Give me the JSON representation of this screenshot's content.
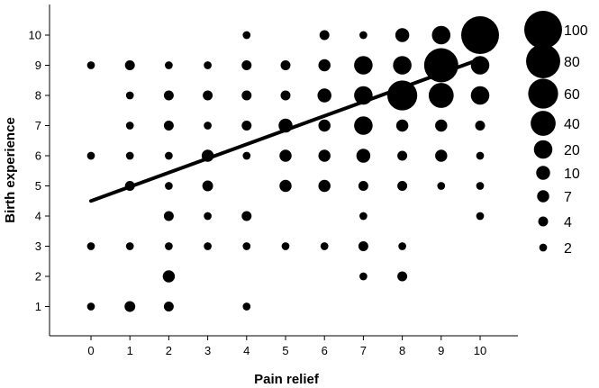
{
  "chart_data": {
    "type": "scatter",
    "title": "",
    "xlabel": "Pain relief",
    "ylabel": "Birth experience",
    "x_ticks": [
      "0",
      "1",
      "2",
      "3",
      "4",
      "5",
      "6",
      "7",
      "8",
      "9",
      "10"
    ],
    "y_ticks": [
      "1",
      "2",
      "3",
      "4",
      "5",
      "6",
      "7",
      "8",
      "9",
      "10"
    ],
    "xlim": [
      -1,
      11
    ],
    "ylim": [
      0,
      11
    ],
    "grid": false,
    "legend_position": "right",
    "size_legend": [
      {
        "label": "100",
        "value": 100
      },
      {
        "label": "80",
        "value": 80
      },
      {
        "label": "60",
        "value": 60
      },
      {
        "label": "40",
        "value": 40
      },
      {
        "label": "20",
        "value": 20
      },
      {
        "label": "10",
        "value": 10
      },
      {
        "label": "7",
        "value": 7
      },
      {
        "label": "4",
        "value": 4
      },
      {
        "label": "2",
        "value": 2
      }
    ],
    "points": [
      {
        "x": 0,
        "y": 1,
        "n": 2
      },
      {
        "x": 1,
        "y": 1,
        "n": 5
      },
      {
        "x": 2,
        "y": 1,
        "n": 4
      },
      {
        "x": 4,
        "y": 1,
        "n": 2
      },
      {
        "x": 2,
        "y": 2,
        "n": 7
      },
      {
        "x": 7,
        "y": 2,
        "n": 2
      },
      {
        "x": 8,
        "y": 2,
        "n": 4
      },
      {
        "x": 0,
        "y": 3,
        "n": 2
      },
      {
        "x": 1,
        "y": 3,
        "n": 2
      },
      {
        "x": 2,
        "y": 3,
        "n": 2
      },
      {
        "x": 3,
        "y": 3,
        "n": 2
      },
      {
        "x": 4,
        "y": 3,
        "n": 2
      },
      {
        "x": 5,
        "y": 3,
        "n": 2
      },
      {
        "x": 6,
        "y": 3,
        "n": 2
      },
      {
        "x": 7,
        "y": 3,
        "n": 4
      },
      {
        "x": 8,
        "y": 3,
        "n": 2
      },
      {
        "x": 2,
        "y": 4,
        "n": 4
      },
      {
        "x": 3,
        "y": 4,
        "n": 2
      },
      {
        "x": 4,
        "y": 4,
        "n": 4
      },
      {
        "x": 7,
        "y": 4,
        "n": 2
      },
      {
        "x": 10,
        "y": 4,
        "n": 2
      },
      {
        "x": 1,
        "y": 5,
        "n": 4
      },
      {
        "x": 2,
        "y": 5,
        "n": 2
      },
      {
        "x": 3,
        "y": 5,
        "n": 5
      },
      {
        "x": 5,
        "y": 5,
        "n": 7
      },
      {
        "x": 6,
        "y": 5,
        "n": 7
      },
      {
        "x": 7,
        "y": 5,
        "n": 4
      },
      {
        "x": 8,
        "y": 5,
        "n": 4
      },
      {
        "x": 9,
        "y": 5,
        "n": 2
      },
      {
        "x": 10,
        "y": 5,
        "n": 2
      },
      {
        "x": 0,
        "y": 6,
        "n": 2
      },
      {
        "x": 1,
        "y": 6,
        "n": 2
      },
      {
        "x": 2,
        "y": 6,
        "n": 2
      },
      {
        "x": 3,
        "y": 6,
        "n": 7
      },
      {
        "x": 4,
        "y": 6,
        "n": 2
      },
      {
        "x": 5,
        "y": 6,
        "n": 7
      },
      {
        "x": 6,
        "y": 6,
        "n": 7
      },
      {
        "x": 7,
        "y": 6,
        "n": 10
      },
      {
        "x": 8,
        "y": 6,
        "n": 4
      },
      {
        "x": 9,
        "y": 6,
        "n": 7
      },
      {
        "x": 10,
        "y": 6,
        "n": 2
      },
      {
        "x": 1,
        "y": 7,
        "n": 2
      },
      {
        "x": 2,
        "y": 7,
        "n": 4
      },
      {
        "x": 3,
        "y": 7,
        "n": 2
      },
      {
        "x": 4,
        "y": 7,
        "n": 4
      },
      {
        "x": 5,
        "y": 7,
        "n": 10
      },
      {
        "x": 6,
        "y": 7,
        "n": 7
      },
      {
        "x": 7,
        "y": 7,
        "n": 20
      },
      {
        "x": 8,
        "y": 7,
        "n": 7
      },
      {
        "x": 9,
        "y": 7,
        "n": 7
      },
      {
        "x": 10,
        "y": 7,
        "n": 4
      },
      {
        "x": 1,
        "y": 8,
        "n": 2
      },
      {
        "x": 2,
        "y": 8,
        "n": 4
      },
      {
        "x": 3,
        "y": 8,
        "n": 4
      },
      {
        "x": 4,
        "y": 8,
        "n": 4
      },
      {
        "x": 5,
        "y": 8,
        "n": 4
      },
      {
        "x": 6,
        "y": 8,
        "n": 10
      },
      {
        "x": 7,
        "y": 8,
        "n": 20
      },
      {
        "x": 8,
        "y": 8,
        "n": 60
      },
      {
        "x": 9,
        "y": 8,
        "n": 40
      },
      {
        "x": 10,
        "y": 8,
        "n": 20
      },
      {
        "x": 0,
        "y": 9,
        "n": 2
      },
      {
        "x": 1,
        "y": 9,
        "n": 4
      },
      {
        "x": 2,
        "y": 9,
        "n": 2
      },
      {
        "x": 3,
        "y": 9,
        "n": 2
      },
      {
        "x": 4,
        "y": 9,
        "n": 4
      },
      {
        "x": 5,
        "y": 9,
        "n": 4
      },
      {
        "x": 6,
        "y": 9,
        "n": 7
      },
      {
        "x": 7,
        "y": 9,
        "n": 20
      },
      {
        "x": 8,
        "y": 9,
        "n": 20
      },
      {
        "x": 9,
        "y": 9,
        "n": 80
      },
      {
        "x": 10,
        "y": 9,
        "n": 20
      },
      {
        "x": 4,
        "y": 10,
        "n": 2
      },
      {
        "x": 6,
        "y": 10,
        "n": 4
      },
      {
        "x": 7,
        "y": 10,
        "n": 2
      },
      {
        "x": 8,
        "y": 10,
        "n": 10
      },
      {
        "x": 9,
        "y": 10,
        "n": 20
      },
      {
        "x": 10,
        "y": 10,
        "n": 100
      }
    ],
    "fit_line": {
      "x": [
        0,
        10
      ],
      "y": [
        4.5,
        9.2
      ]
    }
  }
}
